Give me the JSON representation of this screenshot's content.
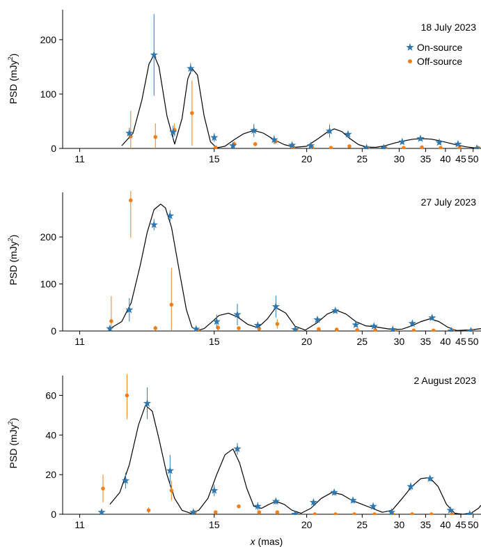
{
  "figure": {
    "xlabel_var": "x",
    "xlabel_unit": " (mas)",
    "ylabel_prefix": "PSD (mJy",
    "ylabel_sup": "2",
    "ylabel_suffix": ")",
    "legend": [
      {
        "label": "On-source",
        "marker": "star",
        "color": "#2e77b0"
      },
      {
        "label": "Off-source",
        "marker": "dot",
        "color": "#f07f1a"
      }
    ],
    "colors": {
      "on": "#2e77b0",
      "off": "#f07f1a",
      "model": "#000000"
    },
    "x_ticks": [
      {
        "v": 11,
        "label": "11"
      },
      {
        "v": 15,
        "label": "15"
      },
      {
        "v": 20,
        "label": "20"
      },
      {
        "v": 25,
        "label": "25"
      },
      {
        "v": 30,
        "label": "30"
      },
      {
        "v": 35,
        "label": "35"
      },
      {
        "v": 40,
        "label": "40"
      },
      {
        "v": 45,
        "label": "45"
      },
      {
        "v": 50,
        "label": "50"
      }
    ]
  },
  "chart_data": [
    {
      "type": "scatter",
      "title": "18 July 2023",
      "xscale": "reciprocal",
      "xlim": [
        10.64,
        53.8
      ],
      "ylim": [
        0,
        255
      ],
      "yticks": [
        0,
        100,
        200
      ],
      "legend": "top-right",
      "on_source": [
        {
          "x": 12.2,
          "y": 28,
          "err": 10
        },
        {
          "x": 12.9,
          "y": 172,
          "err": 75
        },
        {
          "x": 13.5,
          "y": 30,
          "err": 12
        },
        {
          "x": 14.1,
          "y": 147,
          "err": 10
        },
        {
          "x": 15.0,
          "y": 20,
          "err": 8
        },
        {
          "x": 15.8,
          "y": 5,
          "err": 5
        },
        {
          "x": 16.8,
          "y": 33,
          "err": 12
        },
        {
          "x": 17.9,
          "y": 16,
          "err": 8
        },
        {
          "x": 19.0,
          "y": 6,
          "err": 4
        },
        {
          "x": 20.3,
          "y": 5,
          "err": 4
        },
        {
          "x": 21.8,
          "y": 32,
          "err": 12
        },
        {
          "x": 23.5,
          "y": 26,
          "err": 6
        },
        {
          "x": 25.5,
          "y": 1,
          "err": 1
        },
        {
          "x": 27.7,
          "y": 1,
          "err": 1
        },
        {
          "x": 30.5,
          "y": 12,
          "err": 4
        },
        {
          "x": 33.9,
          "y": 18,
          "err": 4
        },
        {
          "x": 38.3,
          "y": 11,
          "err": 4
        },
        {
          "x": 44.0,
          "y": 8,
          "err": 3
        },
        {
          "x": 51.7,
          "y": 0,
          "err": 1
        }
      ],
      "off_source": [
        {
          "x": 12.2,
          "y": 22,
          "err": 47
        },
        {
          "x": 12.9,
          "y": 21,
          "err": 25
        },
        {
          "x": 13.5,
          "y": 34,
          "err": 12
        },
        {
          "x": 14.1,
          "y": 65,
          "err": 60
        },
        {
          "x": 15.0,
          "y": 2,
          "err": 3
        },
        {
          "x": 15.8,
          "y": 8,
          "err": 5
        },
        {
          "x": 16.8,
          "y": 8,
          "err": 4
        },
        {
          "x": 17.9,
          "y": 13,
          "err": 5
        },
        {
          "x": 19.0,
          "y": 2,
          "err": 1
        },
        {
          "x": 20.3,
          "y": 2,
          "err": 1
        },
        {
          "x": 21.8,
          "y": 1,
          "err": 1
        },
        {
          "x": 23.5,
          "y": 4,
          "err": 1
        },
        {
          "x": 25.5,
          "y": 1,
          "err": 1
        },
        {
          "x": 27.7,
          "y": 1,
          "err": 1
        },
        {
          "x": 30.5,
          "y": 1,
          "err": 1
        },
        {
          "x": 33.9,
          "y": 2,
          "err": 1
        },
        {
          "x": 38.3,
          "y": 1,
          "err": 1
        },
        {
          "x": 44.0,
          "y": 1,
          "err": 1
        },
        {
          "x": 51.7,
          "y": 1,
          "err": 1
        }
      ],
      "model": {
        "x": [
          12.0,
          12.3,
          12.55,
          12.75,
          12.9,
          13.05,
          13.3,
          13.55,
          13.8,
          14.0,
          14.15,
          14.35,
          14.6,
          14.85,
          15.1,
          15.45,
          15.85,
          16.3,
          16.8,
          17.3,
          17.9,
          18.5,
          19.2,
          20.0,
          20.8,
          21.6,
          22.2,
          22.9,
          23.7,
          24.6,
          25.6,
          26.7,
          27.9,
          29.3,
          30.8,
          32.5,
          34.3,
          36.3,
          38.5,
          41.0,
          43.8,
          47.0,
          50.5,
          53.8
        ],
        "y": [
          5,
          28,
          90,
          155,
          172,
          150,
          60,
          8,
          55,
          128,
          147,
          135,
          60,
          12,
          1,
          4,
          16,
          27,
          33,
          28,
          16,
          7,
          2,
          4,
          17,
          30,
          36,
          31,
          18,
          7,
          2,
          2,
          5,
          10,
          14,
          17,
          18,
          17,
          14,
          10,
          6,
          3,
          1,
          0
        ]
      }
    },
    {
      "type": "scatter",
      "title": "27 July 2023",
      "xscale": "reciprocal",
      "xlim": [
        10.64,
        53.8
      ],
      "ylim": [
        0,
        295
      ],
      "yticks": [
        0,
        100,
        200
      ],
      "on_source": [
        {
          "x": 11.7,
          "y": 5,
          "err": 4
        },
        {
          "x": 12.2,
          "y": 45,
          "err": 25
        },
        {
          "x": 12.9,
          "y": 226,
          "err": 12
        },
        {
          "x": 13.4,
          "y": 245,
          "err": 12
        },
        {
          "x": 14.3,
          "y": 4,
          "err": 3
        },
        {
          "x": 15.1,
          "y": 20,
          "err": 15
        },
        {
          "x": 16.0,
          "y": 35,
          "err": 23
        },
        {
          "x": 17.0,
          "y": 12,
          "err": 5
        },
        {
          "x": 18.0,
          "y": 52,
          "err": 23
        },
        {
          "x": 19.2,
          "y": 3,
          "err": 2
        },
        {
          "x": 20.8,
          "y": 24,
          "err": 5
        },
        {
          "x": 22.3,
          "y": 43,
          "err": 5
        },
        {
          "x": 24.3,
          "y": 13,
          "err": 4
        },
        {
          "x": 26.4,
          "y": 10,
          "err": 3
        },
        {
          "x": 29.0,
          "y": 3,
          "err": 2
        },
        {
          "x": 32.3,
          "y": 16,
          "err": 3
        },
        {
          "x": 36.5,
          "y": 28,
          "err": 4
        },
        {
          "x": 41.8,
          "y": 0,
          "err": 1
        },
        {
          "x": 49.0,
          "y": 0,
          "err": 1
        }
      ],
      "off_source": [
        {
          "x": 11.7,
          "y": 21,
          "err": 53
        },
        {
          "x": 12.2,
          "y": 278,
          "err": 80
        },
        {
          "x": 12.9,
          "y": 6,
          "err": 5
        },
        {
          "x": 13.4,
          "y": 56,
          "err": 78
        },
        {
          "x": 14.3,
          "y": 1,
          "err": 2
        },
        {
          "x": 15.1,
          "y": 7,
          "err": 6
        },
        {
          "x": 16.0,
          "y": 6,
          "err": 3
        },
        {
          "x": 17.0,
          "y": 5,
          "err": 3
        },
        {
          "x": 18.0,
          "y": 15,
          "err": 10
        },
        {
          "x": 19.2,
          "y": 1,
          "err": 1
        },
        {
          "x": 20.8,
          "y": 4,
          "err": 2
        },
        {
          "x": 22.3,
          "y": 3,
          "err": 1
        },
        {
          "x": 24.3,
          "y": 2,
          "err": 1
        },
        {
          "x": 26.4,
          "y": 2,
          "err": 1
        },
        {
          "x": 29.0,
          "y": 1,
          "err": 1
        },
        {
          "x": 32.3,
          "y": 1,
          "err": 1
        },
        {
          "x": 36.5,
          "y": 1,
          "err": 1
        },
        {
          "x": 41.8,
          "y": 1,
          "err": 1
        },
        {
          "x": 49.0,
          "y": 1,
          "err": 1
        }
      ],
      "model": {
        "x": [
          11.7,
          12.0,
          12.25,
          12.5,
          12.7,
          12.9,
          13.1,
          13.25,
          13.45,
          13.7,
          13.95,
          14.15,
          14.35,
          14.6,
          14.9,
          15.2,
          15.6,
          16.0,
          16.5,
          17.0,
          17.5,
          18.0,
          18.6,
          19.2,
          19.9,
          20.8,
          21.6,
          22.4,
          23.3,
          24.3,
          25.4,
          26.5,
          27.7,
          29.0,
          30.5,
          32.2,
          34.0,
          36.0,
          38.2,
          40.7,
          43.5,
          46.6,
          50.0,
          53.8
        ],
        "y": [
          5,
          20,
          60,
          140,
          210,
          258,
          270,
          262,
          220,
          130,
          45,
          8,
          1,
          5,
          19,
          33,
          38,
          30,
          14,
          7,
          25,
          50,
          38,
          10,
          2,
          18,
          36,
          44,
          36,
          20,
          11,
          9,
          6,
          3,
          4,
          11,
          20,
          26,
          20,
          8,
          1,
          2,
          3,
          5
        ]
      }
    },
    {
      "type": "scatter",
      "title": "2 August 2023",
      "xscale": "reciprocal",
      "xlim": [
        10.64,
        53.8
      ],
      "ylim": [
        0,
        70
      ],
      "yticks": [
        0,
        20,
        40,
        60
      ],
      "xlabel": "x (mas)",
      "on_source": [
        {
          "x": 11.5,
          "y": 1,
          "err": 1
        },
        {
          "x": 12.1,
          "y": 17,
          "err": 4
        },
        {
          "x": 12.7,
          "y": 56,
          "err": 8
        },
        {
          "x": 13.4,
          "y": 22,
          "err": 8
        },
        {
          "x": 14.2,
          "y": 1,
          "err": 1
        },
        {
          "x": 15.0,
          "y": 12,
          "err": 3
        },
        {
          "x": 16.0,
          "y": 33,
          "err": 3
        },
        {
          "x": 17.0,
          "y": 4,
          "err": 2
        },
        {
          "x": 18.0,
          "y": 6.5,
          "err": 1.5
        },
        {
          "x": 19.2,
          "y": 0,
          "err": 1
        },
        {
          "x": 20.5,
          "y": 6,
          "err": 1.5
        },
        {
          "x": 22.2,
          "y": 11,
          "err": 1.5
        },
        {
          "x": 24.0,
          "y": 7,
          "err": 1.5
        },
        {
          "x": 26.3,
          "y": 4,
          "err": 1.5
        },
        {
          "x": 28.8,
          "y": 1,
          "err": 1
        },
        {
          "x": 32.0,
          "y": 14,
          "err": 2
        },
        {
          "x": 36.0,
          "y": 18,
          "err": 1.5
        },
        {
          "x": 41.5,
          "y": 2,
          "err": 1
        },
        {
          "x": 48.5,
          "y": 0,
          "err": 1
        }
      ],
      "off_source": [
        {
          "x": 11.5,
          "y": 13,
          "err": 7
        },
        {
          "x": 12.1,
          "y": 60,
          "err": 12
        },
        {
          "x": 12.7,
          "y": 2,
          "err": 1.5
        },
        {
          "x": 13.4,
          "y": 12,
          "err": 5
        },
        {
          "x": 14.2,
          "y": 1,
          "err": 1
        },
        {
          "x": 15.0,
          "y": 1,
          "err": 1
        },
        {
          "x": 16.0,
          "y": 4,
          "err": 1
        },
        {
          "x": 17.0,
          "y": 1,
          "err": 1
        },
        {
          "x": 18.0,
          "y": 1,
          "err": 1
        },
        {
          "x": 19.2,
          "y": 0,
          "err": 1
        },
        {
          "x": 20.5,
          "y": 0,
          "err": 1
        },
        {
          "x": 22.2,
          "y": 0,
          "err": 1
        },
        {
          "x": 24.0,
          "y": 0,
          "err": 1
        },
        {
          "x": 26.3,
          "y": 0,
          "err": 1
        },
        {
          "x": 28.8,
          "y": 0,
          "err": 1
        },
        {
          "x": 32.0,
          "y": 0,
          "err": 1
        },
        {
          "x": 36.0,
          "y": 0,
          "err": 1
        },
        {
          "x": 41.5,
          "y": 0,
          "err": 1
        },
        {
          "x": 48.5,
          "y": 0,
          "err": 1
        }
      ],
      "model": {
        "x": [
          11.7,
          11.95,
          12.2,
          12.45,
          12.65,
          12.85,
          13.05,
          13.3,
          13.55,
          13.8,
          14.1,
          14.4,
          14.75,
          15.1,
          15.45,
          15.8,
          16.1,
          16.45,
          16.8,
          17.2,
          17.6,
          18.0,
          18.5,
          19.0,
          19.6,
          20.3,
          21.1,
          22.0,
          22.9,
          23.9,
          25.0,
          26.2,
          27.5,
          28.9,
          30.5,
          32.2,
          34.0,
          35.9,
          38.0,
          40.3,
          42.9,
          45.8,
          49.0,
          52.5,
          53.8
        ],
        "y": [
          5,
          11,
          25,
          45,
          55,
          52,
          38,
          20,
          8,
          2,
          0.5,
          2,
          8,
          20,
          30,
          33,
          26,
          13,
          4,
          3,
          5,
          6.5,
          5,
          2,
          0.5,
          3,
          8,
          11,
          10,
          7,
          5,
          3,
          1,
          2,
          8,
          14,
          18,
          18.5,
          14,
          5,
          0.5,
          0,
          0.5,
          3,
          4.5
        ]
      }
    }
  ]
}
